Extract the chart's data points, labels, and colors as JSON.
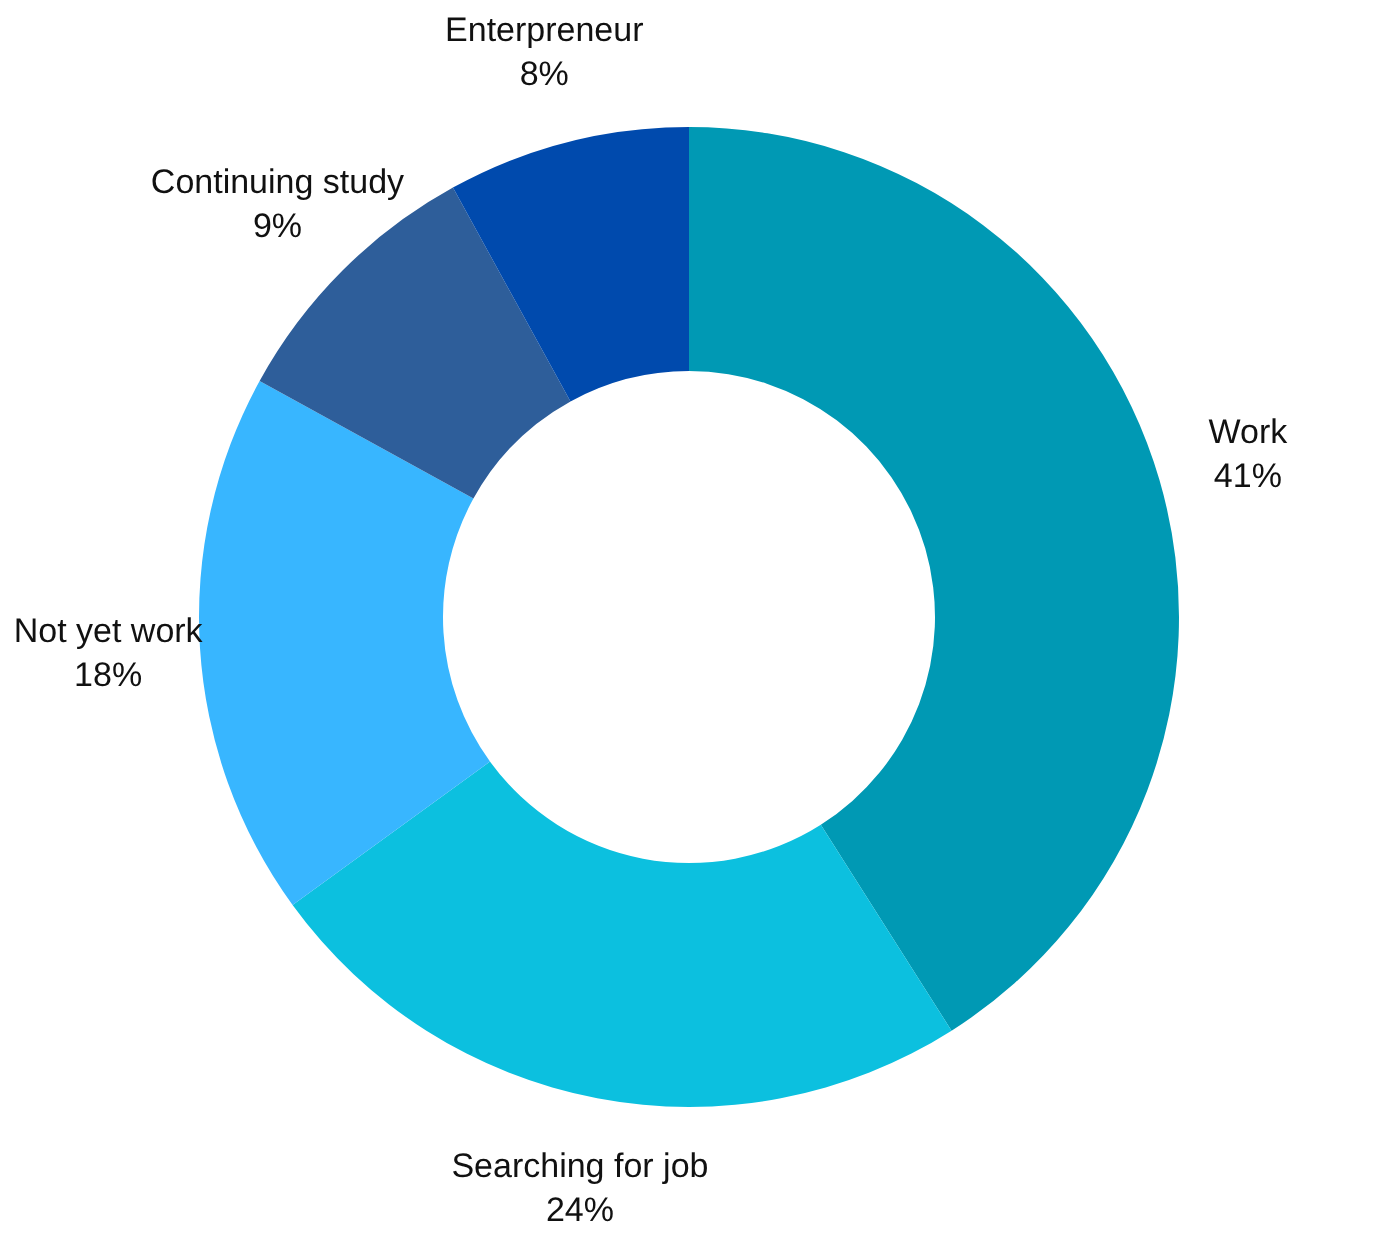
{
  "chart_data": {
    "type": "donut",
    "categories": [
      "Work",
      "Searching for job",
      "Not yet work",
      "Continuing study",
      "Enterpreneur"
    ],
    "values": [
      41,
      24,
      18,
      9,
      8
    ],
    "value_labels": [
      "41%",
      "24%",
      "18%",
      "9%",
      "8%"
    ],
    "colors": [
      "#0099b4",
      "#0cc0df",
      "#38b6ff",
      "#2e5e9a",
      "#004aad"
    ],
    "legend": false
  }
}
